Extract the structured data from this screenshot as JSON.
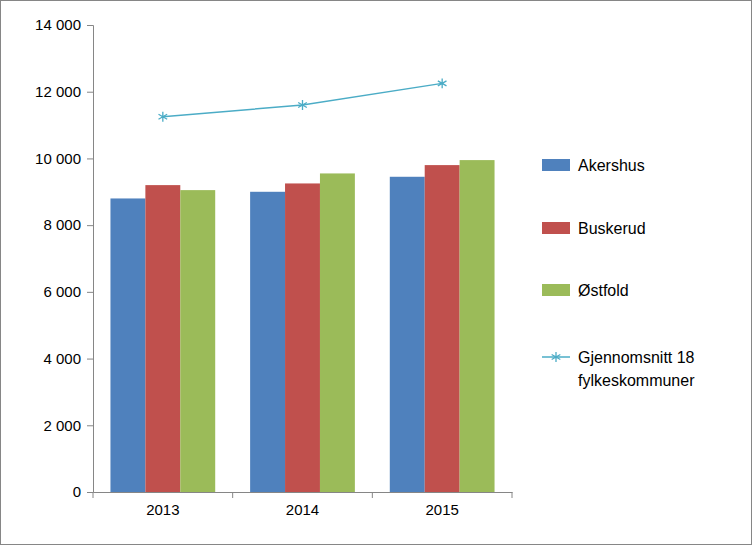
{
  "chart_data": {
    "type": "bar",
    "categories": [
      "2013",
      "2014",
      "2015"
    ],
    "series": [
      {
        "name": "Akershus",
        "color": "#4f81bd",
        "values": [
          8800,
          9000,
          9450
        ]
      },
      {
        "name": "Buskerud",
        "color": "#c0504d",
        "values": [
          9200,
          9250,
          9800
        ]
      },
      {
        "name": "Østfold",
        "color": "#9bbb59",
        "values": [
          9050,
          9550,
          9950
        ]
      },
      {
        "name": "Gjennomsnitt 18 fylkeskommuner",
        "color": "#4bacc6",
        "type": "line",
        "marker": "asterisk",
        "values": [
          11250,
          11600,
          12250
        ]
      }
    ],
    "ylim": [
      0,
      14000
    ],
    "yticks": [
      0,
      {
        "value": 2000,
        "label": "2 000"
      },
      {
        "value": 4000,
        "label": "4 000"
      },
      {
        "value": 6000,
        "label": "6 000"
      },
      {
        "value": 8000,
        "label": "8 000"
      },
      {
        "value": 10000,
        "label": "10 000"
      },
      {
        "value": 12000,
        "label": "12 000"
      },
      {
        "value": 14000,
        "label": "14 000"
      }
    ],
    "grid": false,
    "legend": "right"
  }
}
